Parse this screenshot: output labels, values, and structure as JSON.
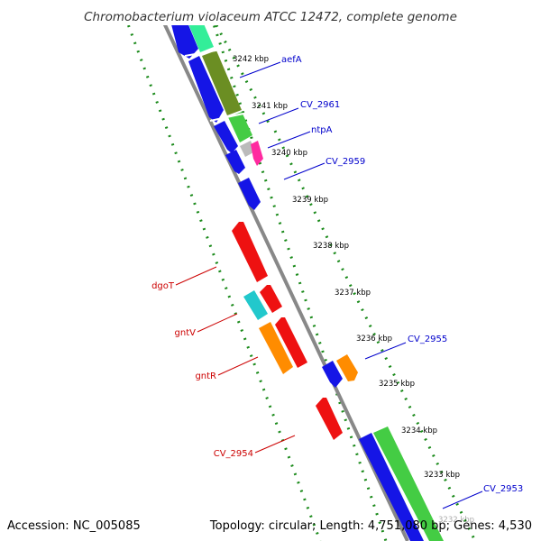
{
  "title": "Chromobacterium violaceum ATCC 12472, complete genome",
  "footer": {
    "accession": "Accession: NC_005085",
    "summary": "Topology: circular; Length: 4,751,080 bp; Genes: 4,530"
  },
  "colors": {
    "backbone": "#888888",
    "dots": "#1a8a1a",
    "forward_label": "#0000cc",
    "reverse_label": "#cc0000",
    "cds_blue": "#1515e6",
    "cds_red": "#ee1111",
    "cds_cyan": "#22c8cc",
    "cds_orange": "#ff8c00",
    "cds_lightgreen": "#44cc44",
    "cds_olive": "#6b8e23",
    "cds_mint": "#33ee99",
    "cds_pink": "#ff2aa0",
    "cds_grey": "#bbbbbb"
  },
  "ticks": [
    "3241 kbp",
    "3242 kbp",
    "3241 kbp",
    "3240 kbp",
    "3239 kbp",
    "3238 kbp",
    "3237 kbp",
    "3236 kbp",
    "3235 kbp",
    "3234 kbp",
    "3233 kbp",
    "3232 kbp"
  ],
  "genes_forward": [
    "aefA",
    "CV_2961",
    "ntpA",
    "CV_2959",
    "CV_2955",
    "CV_2953"
  ],
  "genes_reverse": [
    "dgoT",
    "gntV",
    "gntR",
    "CV_2954"
  ]
}
